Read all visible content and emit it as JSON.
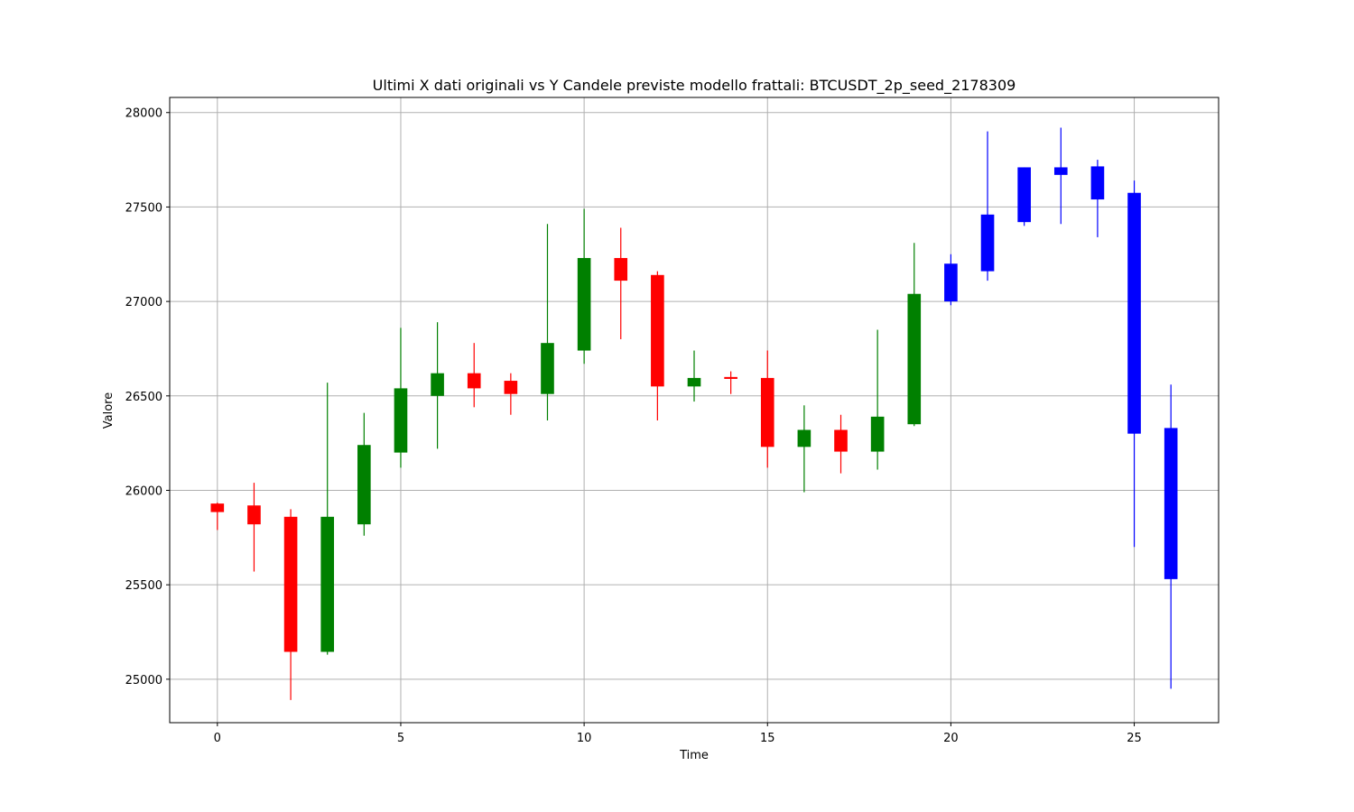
{
  "chart_data": {
    "type": "candlestick",
    "title": "Ultimi X dati originali vs Y Candele previste modello frattali: BTCUSDT_2p_seed_2178309",
    "xlabel": "Time",
    "ylabel": "Valore",
    "xlim": [
      -1.3,
      27.3
    ],
    "ylim": [
      24770,
      28080
    ],
    "x_ticks": [
      0,
      5,
      10,
      15,
      20,
      25
    ],
    "y_ticks": [
      25000,
      25500,
      26000,
      26500,
      27000,
      27500,
      28000
    ],
    "grid": true,
    "colors": {
      "up": "#008000",
      "down": "#ff0000",
      "predicted": "#0000ff"
    },
    "candles": [
      {
        "x": 0,
        "open": 25930,
        "close": 25885,
        "high": 25935,
        "low": 25790,
        "kind": "down"
      },
      {
        "x": 1,
        "open": 25920,
        "close": 25820,
        "high": 26040,
        "low": 25570,
        "kind": "down"
      },
      {
        "x": 2,
        "open": 25860,
        "close": 25145,
        "high": 25900,
        "low": 24890,
        "kind": "down"
      },
      {
        "x": 3,
        "open": 25145,
        "close": 25860,
        "high": 26570,
        "low": 25130,
        "kind": "up"
      },
      {
        "x": 4,
        "open": 25820,
        "close": 26240,
        "high": 26410,
        "low": 25760,
        "kind": "up"
      },
      {
        "x": 5,
        "open": 26200,
        "close": 26540,
        "high": 26860,
        "low": 26120,
        "kind": "up"
      },
      {
        "x": 6,
        "open": 26500,
        "close": 26620,
        "high": 26890,
        "low": 26220,
        "kind": "up"
      },
      {
        "x": 7,
        "open": 26620,
        "close": 26540,
        "high": 26780,
        "low": 26440,
        "kind": "down"
      },
      {
        "x": 8,
        "open": 26580,
        "close": 26510,
        "high": 26620,
        "low": 26400,
        "kind": "down"
      },
      {
        "x": 9,
        "open": 26510,
        "close": 26780,
        "high": 27410,
        "low": 26370,
        "kind": "up"
      },
      {
        "x": 10,
        "open": 26740,
        "close": 27230,
        "high": 27490,
        "low": 26670,
        "kind": "up"
      },
      {
        "x": 11,
        "open": 27230,
        "close": 27110,
        "high": 27390,
        "low": 26800,
        "kind": "down"
      },
      {
        "x": 12,
        "open": 27140,
        "close": 26550,
        "high": 27160,
        "low": 26370,
        "kind": "down"
      },
      {
        "x": 13,
        "open": 26550,
        "close": 26595,
        "high": 26740,
        "low": 26470,
        "kind": "up"
      },
      {
        "x": 14,
        "open": 26600,
        "close": 26590,
        "high": 26630,
        "low": 26510,
        "kind": "down"
      },
      {
        "x": 15,
        "open": 26595,
        "close": 26230,
        "high": 26740,
        "low": 26120,
        "kind": "down"
      },
      {
        "x": 16,
        "open": 26230,
        "close": 26320,
        "high": 26450,
        "low": 25990,
        "kind": "up"
      },
      {
        "x": 17,
        "open": 26320,
        "close": 26205,
        "high": 26400,
        "low": 26090,
        "kind": "down"
      },
      {
        "x": 18,
        "open": 26205,
        "close": 26390,
        "high": 26850,
        "low": 26110,
        "kind": "up"
      },
      {
        "x": 19,
        "open": 26350,
        "close": 27040,
        "high": 27310,
        "low": 26340,
        "kind": "up"
      },
      {
        "x": 20,
        "open": 27000,
        "close": 27200,
        "high": 27250,
        "low": 26980,
        "kind": "predicted"
      },
      {
        "x": 21,
        "open": 27160,
        "close": 27460,
        "high": 27900,
        "low": 27110,
        "kind": "predicted"
      },
      {
        "x": 22,
        "open": 27420,
        "close": 27710,
        "high": 27710,
        "low": 27400,
        "kind": "predicted"
      },
      {
        "x": 23,
        "open": 27670,
        "close": 27710,
        "high": 27920,
        "low": 27410,
        "kind": "predicted"
      },
      {
        "x": 24,
        "open": 27540,
        "close": 27715,
        "high": 27750,
        "low": 27340,
        "kind": "predicted"
      },
      {
        "x": 25,
        "open": 27575,
        "close": 26300,
        "high": 27640,
        "low": 25700,
        "kind": "predicted"
      },
      {
        "x": 26,
        "open": 26330,
        "close": 25530,
        "high": 26560,
        "low": 24950,
        "kind": "predicted"
      }
    ]
  }
}
